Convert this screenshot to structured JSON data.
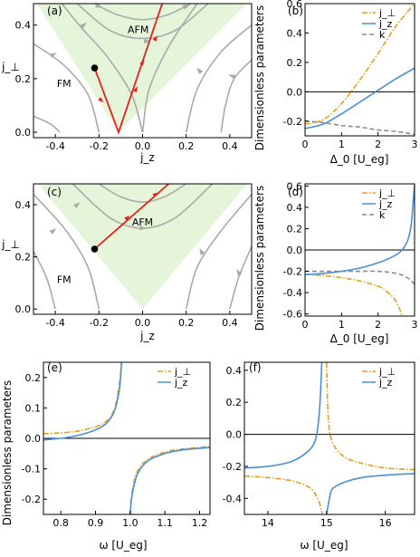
{
  "colors": {
    "orange": "#E2A11B",
    "blue": "#4A90D9",
    "gray": "#8C8C8C",
    "red": "#E8201A",
    "flow": "#AAAAAA",
    "afm_fill": "#E4F5D9",
    "axis": "#000000"
  },
  "chart_data": [
    {
      "panel": "a",
      "label": "(a)",
      "type": "flow-diagram",
      "xlabel": "j_z",
      "ylabel": "j_⊥",
      "xlim": [
        -0.5,
        0.5
      ],
      "ylim": [
        -0.02,
        0.48
      ],
      "xticks": [
        -0.4,
        -0.2,
        0.0,
        0.2,
        0.4
      ],
      "xtick_labels": [
        "-0.4",
        "-0.2",
        "0.0",
        "0.2",
        "0.4"
      ],
      "yticks": [
        0.0,
        0.2,
        0.4
      ],
      "ytick_labels": [
        "0.0",
        "0.2",
        "0.4"
      ],
      "region_labels": [
        {
          "text": "AFM",
          "x": -0.02,
          "y": 0.37
        },
        {
          "text": "FM",
          "x": -0.36,
          "y": 0.17
        }
      ],
      "afm_boundary": [
        [
          -0.5,
          0.5
        ],
        [
          -0.11,
          0.0
        ],
        [
          0.5,
          0.5
        ]
      ],
      "flow_lines": [
        [
          [
            -0.5,
            0.33
          ],
          [
            -0.36,
            0.25
          ],
          [
            -0.25,
            0.14
          ],
          [
            -0.2,
            0.0
          ]
        ],
        [
          [
            -0.5,
            0.06
          ],
          [
            -0.42,
            0.03
          ],
          [
            -0.38,
            0.0
          ]
        ],
        [
          [
            -0.37,
            0.48
          ],
          [
            -0.28,
            0.39
          ],
          [
            -0.16,
            0.28
          ],
          [
            -0.05,
            0.14
          ],
          [
            0.0,
            0.0
          ]
        ],
        [
          [
            -0.22,
            0.48
          ],
          [
            -0.12,
            0.44
          ],
          [
            0.0,
            0.42
          ],
          [
            0.12,
            0.44
          ],
          [
            0.22,
            0.48
          ]
        ],
        [
          [
            -0.3,
            0.48
          ],
          [
            -0.15,
            0.38
          ],
          [
            0.0,
            0.35
          ],
          [
            0.15,
            0.38
          ],
          [
            0.3,
            0.48
          ]
        ],
        [
          [
            0.25,
            0.48
          ],
          [
            0.12,
            0.32
          ],
          [
            0.03,
            0.16
          ],
          [
            0.0,
            0.0
          ]
        ],
        [
          [
            0.5,
            0.4
          ],
          [
            0.36,
            0.3
          ],
          [
            0.25,
            0.16
          ],
          [
            0.2,
            0.0
          ]
        ],
        [
          [
            0.5,
            0.27
          ],
          [
            0.42,
            0.2
          ],
          [
            0.38,
            0.1
          ],
          [
            0.36,
            0.0
          ]
        ]
      ],
      "flow_arrows": [
        {
          "x": -0.27,
          "y": 0.4,
          "angle": -40
        },
        {
          "x": -0.41,
          "y": 0.29,
          "angle": -30
        },
        {
          "x": -0.2,
          "y": 0.47,
          "angle": 20
        },
        {
          "x": 0.2,
          "y": 0.47,
          "angle": -20
        },
        {
          "x": 0.41,
          "y": 0.21,
          "angle": 200
        },
        {
          "x": 0.26,
          "y": 0.23,
          "angle": 230
        },
        {
          "x": 0.02,
          "y": 0.34,
          "angle": 0
        }
      ],
      "red_line": [
        [
          -0.22,
          0.24
        ],
        [
          -0.11,
          0.0
        ],
        [
          0.09,
          0.48
        ]
      ],
      "red_arrows": [
        {
          "x": 0.06,
          "y": 0.35,
          "angle": -60
        },
        {
          "x": 0.0,
          "y": 0.26,
          "angle": -60
        },
        {
          "x": -0.03,
          "y": 0.16,
          "angle": -60
        },
        {
          "x": -0.19,
          "y": 0.12,
          "angle": 40
        }
      ],
      "black_dot": {
        "x": -0.22,
        "y": 0.24
      }
    },
    {
      "panel": "b",
      "label": "(b)",
      "type": "line",
      "xlabel": "Δ_0 [U_eg]",
      "ylabel": "Dimensionless parameters",
      "xlim": [
        0,
        3
      ],
      "ylim": [
        -0.3,
        0.6
      ],
      "xticks": [
        0,
        1,
        2,
        3
      ],
      "xtick_labels": [
        "0",
        "1",
        "2",
        "3"
      ],
      "yticks": [
        -0.2,
        0.0,
        0.2,
        0.4,
        0.6
      ],
      "ytick_labels": [
        "-0.2",
        "0.0",
        "0.2",
        "0.4",
        "0.6"
      ],
      "hline": 0,
      "legend": [
        "j_⊥",
        "j_z",
        "k"
      ],
      "series": [
        {
          "name": "j_⊥",
          "style": "dashdot",
          "color": "orange",
          "x": [
            0,
            0.5,
            1.0,
            1.5,
            2.0,
            2.5,
            3.0
          ],
          "y": [
            -0.22,
            -0.19,
            -0.08,
            0.08,
            0.26,
            0.45,
            0.6
          ]
        },
        {
          "name": "j_z",
          "style": "solid",
          "color": "blue",
          "x": [
            0,
            0.5,
            1.0,
            1.5,
            2.0,
            2.5,
            3.0
          ],
          "y": [
            -0.25,
            -0.22,
            -0.15,
            -0.07,
            0.01,
            0.09,
            0.16
          ]
        },
        {
          "name": "k",
          "style": "dashed",
          "color": "gray",
          "x": [
            0,
            0.5,
            1.0,
            1.5,
            2.0,
            2.5,
            3.0
          ],
          "y": [
            -0.2,
            -0.21,
            -0.23,
            -0.24,
            -0.26,
            -0.27,
            -0.29
          ]
        }
      ]
    },
    {
      "panel": "c",
      "label": "(c)",
      "type": "flow-diagram",
      "xlabel": "j_z",
      "ylabel": "j_⊥",
      "xlim": [
        -0.5,
        0.5
      ],
      "ylim": [
        -0.02,
        0.48
      ],
      "xticks": [
        -0.4,
        -0.2,
        0.0,
        0.2,
        0.4
      ],
      "xtick_labels": [
        "-0.4",
        "-0.2",
        "0.0",
        "0.2",
        "0.4"
      ],
      "yticks": [
        0.0,
        0.2,
        0.4
      ],
      "ytick_labels": [
        "0.0",
        "0.2",
        "0.4"
      ],
      "region_labels": [
        {
          "text": "AFM",
          "x": 0.0,
          "y": 0.32
        },
        {
          "text": "FM",
          "x": -0.36,
          "y": 0.1
        }
      ],
      "afm_boundary": [
        [
          -0.5,
          0.5
        ],
        [
          0.0,
          0.0
        ],
        [
          0.5,
          0.5
        ]
      ],
      "flow_lines": [
        [
          [
            -0.5,
            0.44
          ],
          [
            -0.35,
            0.3
          ],
          [
            -0.25,
            0.16
          ],
          [
            -0.2,
            0.0
          ]
        ],
        [
          [
            -0.5,
            0.22
          ],
          [
            -0.44,
            0.12
          ],
          [
            -0.4,
            0.0
          ]
        ],
        [
          [
            -0.2,
            0.48
          ],
          [
            -0.1,
            0.43
          ],
          [
            0.0,
            0.41
          ],
          [
            0.1,
            0.43
          ],
          [
            0.2,
            0.48
          ]
        ],
        [
          [
            -0.32,
            0.48
          ],
          [
            -0.15,
            0.35
          ],
          [
            0.0,
            0.31
          ],
          [
            0.15,
            0.35
          ],
          [
            0.32,
            0.48
          ]
        ],
        [
          [
            0.5,
            0.44
          ],
          [
            0.36,
            0.3
          ],
          [
            0.25,
            0.16
          ],
          [
            0.2,
            0.0
          ]
        ],
        [
          [
            0.5,
            0.24
          ],
          [
            0.44,
            0.12
          ],
          [
            0.4,
            0.0
          ]
        ]
      ],
      "flow_arrows": [
        {
          "x": -0.3,
          "y": 0.4,
          "angle": -40
        },
        {
          "x": -0.41,
          "y": 0.3,
          "angle": -40
        },
        {
          "x": 0.27,
          "y": 0.22,
          "angle": 240
        },
        {
          "x": 0.44,
          "y": 0.14,
          "angle": 240
        },
        {
          "x": 0.0,
          "y": 0.31,
          "angle": 0
        }
      ],
      "red_line": [
        [
          -0.22,
          0.23
        ],
        [
          0.12,
          0.48
        ]
      ],
      "red_arrows": [
        {
          "x": -0.07,
          "y": 0.35,
          "angle": -40
        },
        {
          "x": 0.06,
          "y": 0.44,
          "angle": -30
        }
      ],
      "black_dot": {
        "x": -0.22,
        "y": 0.23
      }
    },
    {
      "panel": "d",
      "label": "(d)",
      "type": "line",
      "xlabel": "Δ_0 [U_eg]",
      "ylabel": "Dimensionless parameters",
      "xlim": [
        0,
        3
      ],
      "ylim": [
        -0.62,
        0.62
      ],
      "xticks": [
        0,
        1,
        2,
        3
      ],
      "xtick_labels": [
        "0",
        "1",
        "2",
        "3"
      ],
      "yticks": [
        -0.6,
        -0.4,
        -0.2,
        0.0,
        0.2,
        0.4,
        0.6
      ],
      "ytick_labels": [
        "-0.6",
        "-0.4",
        "-0.2",
        "0.0",
        "0.2",
        "0.4",
        "0.6"
      ],
      "hline": 0,
      "legend": [
        "j_⊥",
        "j_z",
        "k"
      ],
      "series": [
        {
          "name": "j_⊥",
          "style": "dashdot",
          "color": "orange",
          "x": [
            0,
            0.5,
            1.0,
            1.5,
            2.0,
            2.2,
            2.4,
            2.5,
            2.6,
            2.65
          ],
          "y": [
            -0.23,
            -0.24,
            -0.26,
            -0.29,
            -0.34,
            -0.38,
            -0.44,
            -0.49,
            -0.56,
            -0.62
          ]
        },
        {
          "name": "j_z",
          "style": "solid",
          "color": "blue",
          "x": [
            0,
            0.5,
            1.0,
            1.5,
            2.0,
            2.3,
            2.6,
            2.8,
            2.9,
            2.95,
            3.0
          ],
          "y": [
            -0.23,
            -0.22,
            -0.2,
            -0.17,
            -0.12,
            -0.08,
            -0.02,
            0.08,
            0.22,
            0.4,
            0.62
          ]
        },
        {
          "name": "k",
          "style": "dashed",
          "color": "gray",
          "x": [
            0,
            0.5,
            1.0,
            1.5,
            2.0,
            2.5,
            2.8,
            3.0
          ],
          "y": [
            -0.2,
            -0.2,
            -0.2,
            -0.2,
            -0.2,
            -0.22,
            -0.26,
            -0.32
          ]
        }
      ]
    },
    {
      "panel": "e",
      "label": "(e)",
      "type": "line",
      "xlabel": "ω [U_eg]",
      "ylabel": "Dimensionless parameters",
      "xlim": [
        0.75,
        1.23
      ],
      "ylim": [
        -0.25,
        0.25
      ],
      "xticks": [
        0.8,
        0.9,
        1.0,
        1.1,
        1.2
      ],
      "xtick_labels": [
        "0.8",
        "0.9",
        "1.0",
        "1.1",
        "1.2"
      ],
      "yticks": [
        -0.2,
        -0.1,
        0.0,
        0.1,
        0.2
      ],
      "ytick_labels": [
        "-0.2",
        "-0.1",
        "0.0",
        "0.1",
        "0.2"
      ],
      "hline": 0,
      "legend": [
        "j_⊥",
        "j_z"
      ],
      "series": [
        {
          "name": "j_⊥",
          "style": "dashdot",
          "color": "orange",
          "x": [
            0.75,
            0.8,
            0.85,
            0.9,
            0.93,
            0.95,
            0.96,
            0.97,
            0.975,
            1.0,
            1.005,
            1.02,
            1.05,
            1.1,
            1.15,
            1.23
          ],
          "y": [
            0.015,
            0.018,
            0.024,
            0.038,
            0.055,
            0.085,
            0.12,
            0.19,
            0.25,
            -0.25,
            -0.18,
            -0.11,
            -0.07,
            -0.045,
            -0.035,
            -0.027
          ]
        },
        {
          "name": "j_z",
          "style": "solid",
          "color": "blue",
          "x": [
            0.75,
            0.8,
            0.85,
            0.9,
            0.93,
            0.95,
            0.96,
            0.97,
            0.975,
            1.0,
            1.005,
            1.02,
            1.05,
            1.1,
            1.15,
            1.23
          ],
          "y": [
            -0.005,
            0.0,
            0.01,
            0.028,
            0.048,
            0.078,
            0.11,
            0.17,
            0.25,
            -0.25,
            -0.19,
            -0.12,
            -0.075,
            -0.05,
            -0.038,
            -0.03
          ]
        }
      ]
    },
    {
      "panel": "f",
      "label": "(f)",
      "type": "line",
      "xlabel": "ω [U_eg]",
      "ylabel": "",
      "xlim": [
        13.6,
        16.5
      ],
      "ylim": [
        -0.5,
        0.45
      ],
      "xticks": [
        14,
        15,
        16
      ],
      "xtick_labels": [
        "14",
        "15",
        "16"
      ],
      "yticks": [
        -0.4,
        -0.2,
        0.0,
        0.2,
        0.4
      ],
      "ytick_labels": [
        "-0.4",
        "-0.2",
        "0.0",
        "0.2",
        "0.4"
      ],
      "hline": 0,
      "legend": [
        "j_⊥",
        "j_z"
      ],
      "series": [
        {
          "name": "j_⊥",
          "style": "dashdot",
          "color": "orange",
          "x": [
            13.6,
            14.0,
            14.4,
            14.7,
            14.85,
            14.93,
            15.0,
            15.03,
            15.1,
            15.3,
            15.6,
            16.0,
            16.5
          ],
          "y": [
            -0.26,
            -0.27,
            -0.29,
            -0.33,
            -0.4,
            -0.5,
            0.45,
            0.1,
            -0.05,
            -0.14,
            -0.18,
            -0.21,
            -0.22
          ]
        },
        {
          "name": "j_z",
          "style": "solid",
          "color": "blue",
          "x": [
            13.6,
            14.0,
            14.4,
            14.7,
            14.82,
            14.88,
            14.92,
            15.0,
            15.05,
            15.1,
            15.3,
            15.6,
            16.0,
            16.5
          ],
          "y": [
            -0.21,
            -0.2,
            -0.17,
            -0.1,
            -0.02,
            0.15,
            0.45,
            -0.5,
            -0.4,
            -0.34,
            -0.3,
            -0.27,
            -0.255,
            -0.245
          ]
        }
      ]
    }
  ]
}
